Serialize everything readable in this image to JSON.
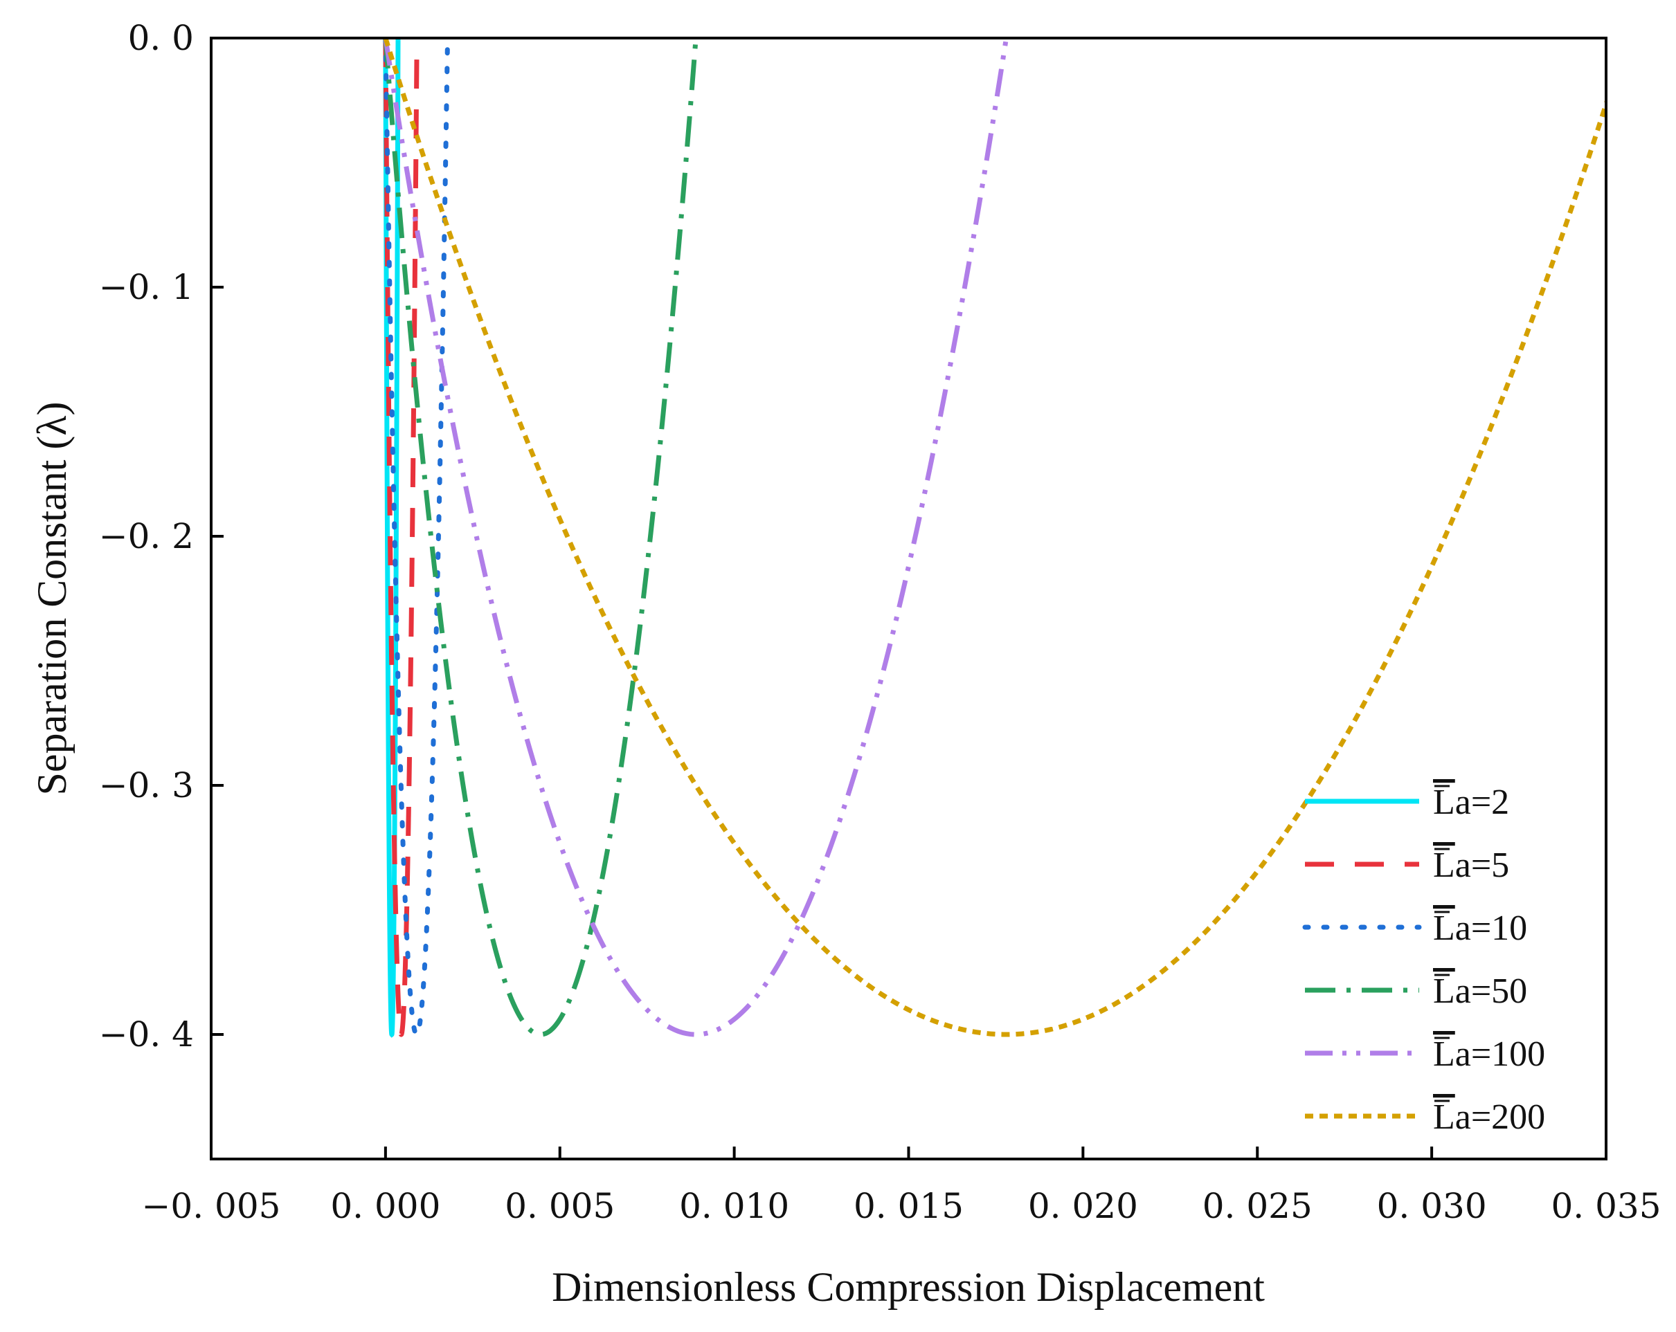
{
  "chart_data": {
    "type": "line",
    "title": "",
    "xlabel": "Dimensionless Compression Displacement",
    "ylabel": "Separation Constant (λ)",
    "xlim": [
      -0.005,
      0.035
    ],
    "ylim": [
      -0.45,
      0.0
    ],
    "x_ticks": [
      -0.005,
      0.0,
      0.005,
      0.01,
      0.015,
      0.02,
      0.025,
      0.03,
      0.035
    ],
    "x_tick_labels": [
      "−0. 005",
      "0. 000",
      "0. 005",
      "0. 010",
      "0. 015",
      "0. 020",
      "0. 025",
      "0. 030",
      "0. 035"
    ],
    "y_ticks": [
      0.0,
      -0.1,
      -0.2,
      -0.3,
      -0.4
    ],
    "y_tick_labels": [
      "0. 0",
      "−0. 1",
      "−0. 2",
      "−0. 3",
      "−0. 4"
    ],
    "grid": false,
    "legend_position": "bottom-right",
    "curve_model": "parabolic: lambda = -0.4 * (1 - ((x - x_min) / (x_min - x_start))^2), from lambda=0 at x_start down to -0.4 at x_min and back to 0",
    "series": [
      {
        "name": "La=2",
        "label_bar": "L",
        "label_rest": "a=2",
        "color": "#00e5f5",
        "dash": "solid",
        "x_start": 0.0,
        "x_min": 0.00018,
        "lambda_min": -0.4
      },
      {
        "name": "La=5",
        "label_bar": "L",
        "label_rest": "a=5",
        "color": "#e8323c",
        "dash": "dash",
        "x_start": 0.0,
        "x_min": 0.00045,
        "lambda_min": -0.4
      },
      {
        "name": "La=10",
        "label_bar": "L",
        "label_rest": "a=10",
        "color": "#1f6fd6",
        "dash": "dot",
        "x_start": 0.0,
        "x_min": 0.00089,
        "lambda_min": -0.4
      },
      {
        "name": "La=50",
        "label_bar": "L",
        "label_rest": "a=50",
        "color": "#2aa05e",
        "dash": "dashdot",
        "x_start": 0.0,
        "x_min": 0.00445,
        "lambda_min": -0.4
      },
      {
        "name": "La=100",
        "label_bar": "L",
        "label_rest": "a=100",
        "color": "#b07ee8",
        "dash": "dashdotdot",
        "x_start": 0.0,
        "x_min": 0.0089,
        "lambda_min": -0.4
      },
      {
        "name": "La=200",
        "label_bar": "L",
        "label_rest": "a=200",
        "color": "#d4a000",
        "dash": "shortdash",
        "x_start": 0.0,
        "x_min": 0.0178,
        "lambda_min": -0.4
      }
    ]
  }
}
